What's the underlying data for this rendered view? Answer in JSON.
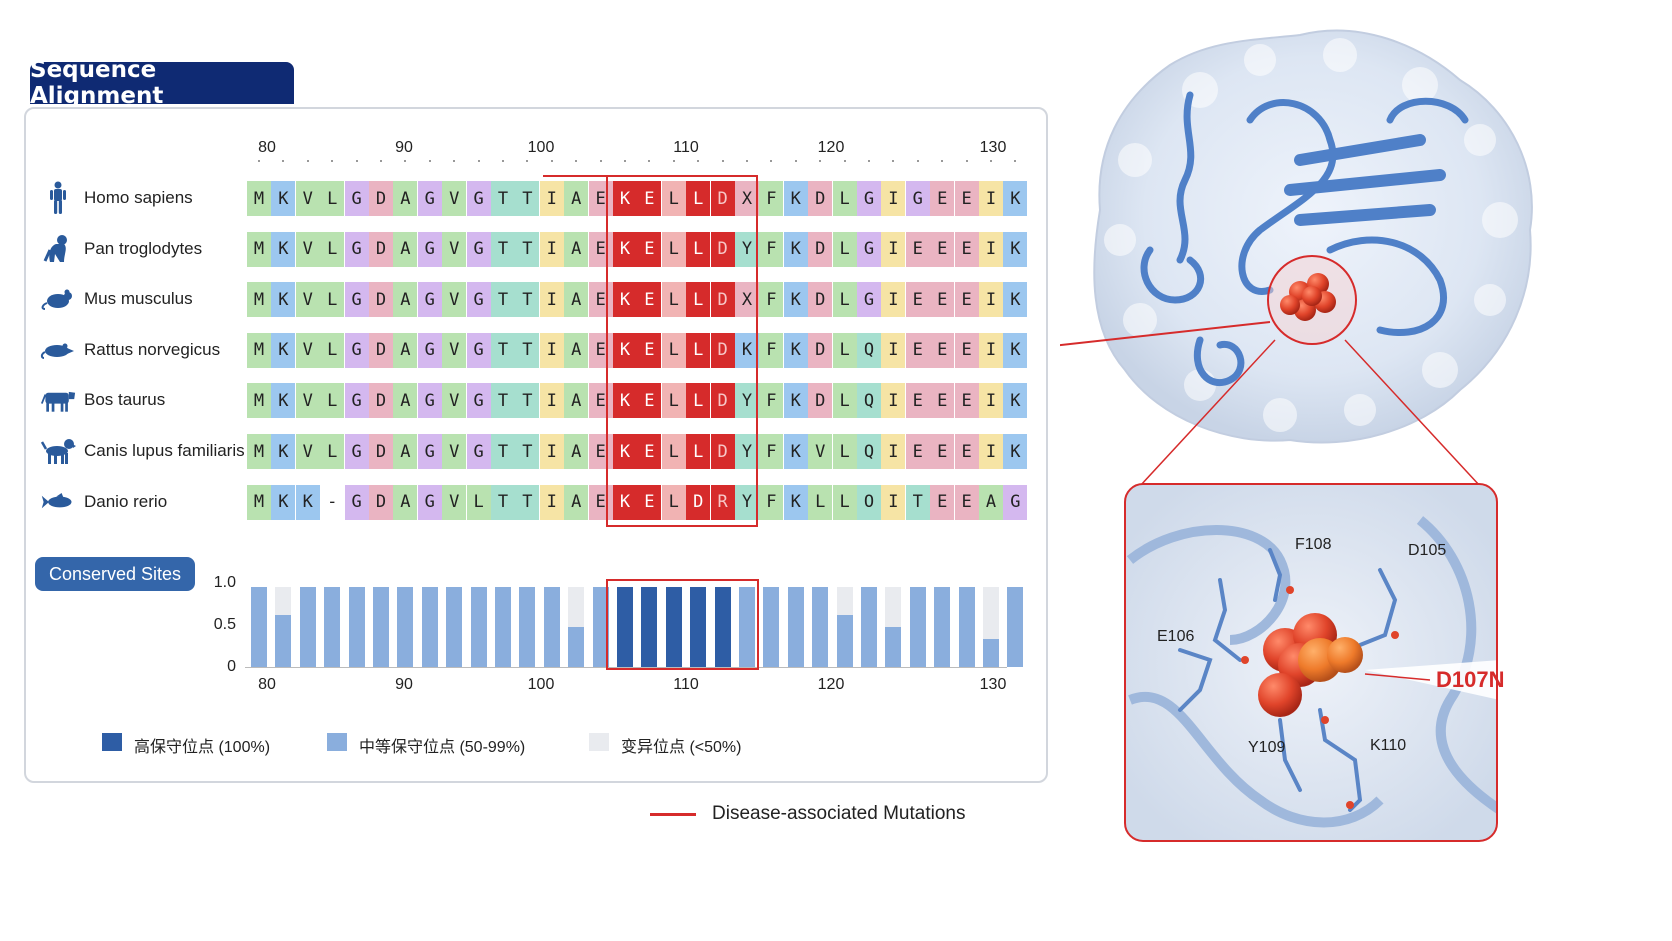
{
  "panel_title": "Sequence Alignment",
  "ruler_ticks": [
    "80",
    "90",
    "100",
    "110",
    "120",
    "130"
  ],
  "species": [
    {
      "name": "Homo sapiens",
      "icon": "human-icon",
      "seq": "MKVLGDAGVGTTIAEKELLDXFKDLGIGEEIK"
    },
    {
      "name": "Pan troglodytes",
      "icon": "chimpanzee-icon",
      "seq": "MKVLGDAGVGTTIAEKELLDYFKDLGIEEEIK"
    },
    {
      "name": "Mus musculus",
      "icon": "mouse-icon",
      "seq": "MKVLGDAGVGTTIAEKELLDXFKDLGIEEEIK"
    },
    {
      "name": "Rattus norvegicus",
      "icon": "rat-icon",
      "seq": "MKVLGDAGVGTTIAEKELLDKFKDLQIEEEIK"
    },
    {
      "name": "Bos taurus",
      "icon": "cow-icon",
      "seq": "MKVLGDAGVGTTIAEKELLDYFKDLQIEEEIK"
    },
    {
      "name": "Canis lupus familiaris",
      "icon": "dog-icon",
      "seq": "MKVLGDAGVGTTIAEKELLDYFKVLQIEEEIK"
    },
    {
      "name": "Danio rerio",
      "icon": "fish-icon",
      "seq": "MKK-GDAGVLTTIAEKELDRYFKLLOITEEAG"
    }
  ],
  "conserved": {
    "label": "Conserved Sites",
    "y_ticks": [
      "1.0",
      "0.5",
      "0"
    ],
    "x_ticks": [
      "80",
      "90",
      "100",
      "110",
      "120",
      "130"
    ],
    "values": [
      1.0,
      0.65,
      1.0,
      1.0,
      1.0,
      1.0,
      1.0,
      1.0,
      1.0,
      1.0,
      1.0,
      1.0,
      1.0,
      0.5,
      1.0,
      1.0,
      1.0,
      1.0,
      1.0,
      1.0,
      1.0,
      1.0,
      1.0,
      1.0,
      0.65,
      1.0,
      0.5,
      1.0,
      1.0,
      1.0,
      0.35,
      1.0
    ],
    "legend": [
      {
        "label": "高保守位点 (100%)",
        "color": "#2e5da5"
      },
      {
        "label": "中等保守位点 (50-99%)",
        "color": "#8aaedd"
      },
      {
        "label": "变异位点 (<50%)",
        "color": "#e9ebef"
      }
    ]
  },
  "mutation_legend": "Disease-associated Mutations",
  "structure": {
    "residue_labels": [
      "F108",
      "D105",
      "E106",
      "Y109",
      "K110"
    ],
    "mutation_label": "D107N"
  },
  "colors": {
    "title_bg": "#0f2a73",
    "highlight": "#d62b2b",
    "high_conserved": "#2e5da5",
    "medium_conserved": "#8aaedd"
  }
}
